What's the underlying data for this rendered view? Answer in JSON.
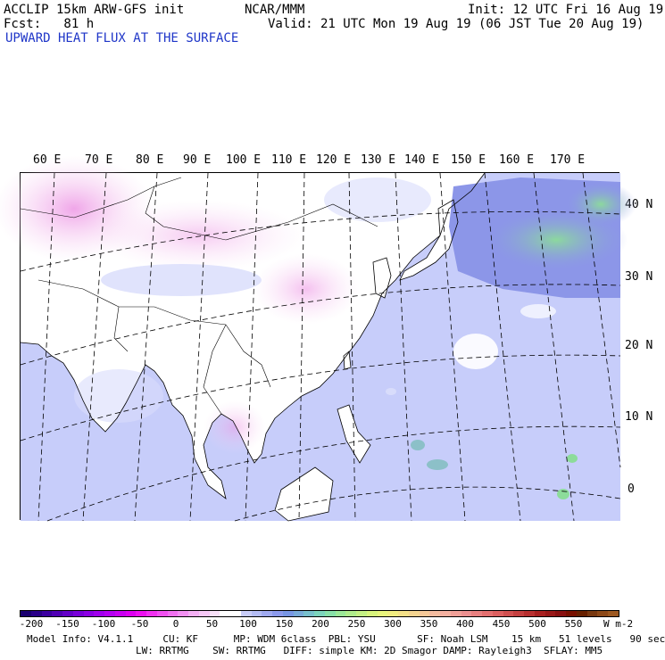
{
  "header": {
    "model": "ACCLIP 15km ARW-GFS init",
    "org": "NCAR/MMM",
    "init": "Init: 12 UTC Fri 16 Aug 19",
    "fcst": "Fcst:   81 h",
    "valid": "Valid: 21 UTC Mon 19 Aug 19 (06 JST Tue 20 Aug 19)",
    "field": "UPWARD HEAT FLUX AT THE SURFACE"
  },
  "map": {
    "lon_labels": [
      "60 E",
      "70 E",
      "80 E",
      "90 E",
      "100 E",
      "110 E",
      "120 E",
      "130 E",
      "140 E",
      "150 E",
      "160 E",
      "170 E"
    ],
    "lat_labels": [
      "40 N",
      "30 N",
      "20 N",
      "10 N",
      "0"
    ],
    "colors": {
      "ocean": "#c7cdfa",
      "ocean_deep": "#a7b0f2",
      "land": "#ffffff",
      "land_pink": "#f8d8f4",
      "land_magenta": "#ee9ce6",
      "flux_green": "#8cdc9a",
      "flux_blue": "#8c96e8"
    }
  },
  "colorbar": {
    "colors": [
      "#1a0070",
      "#2a0088",
      "#3c00a0",
      "#5000b4",
      "#6400c8",
      "#7800d8",
      "#8c00e4",
      "#a000ec",
      "#b400f0",
      "#c800f0",
      "#dc00f0",
      "#ec10f0",
      "#f030f0",
      "#f050f0",
      "#f070f0",
      "#f290f2",
      "#f4b0f4",
      "#f6c8f6",
      "#f8e0f8",
      "#ffffff",
      "#ffffff",
      "#c8ccf8",
      "#b4bcf4",
      "#a0aaf0",
      "#8c9aec",
      "#7896e4",
      "#78aad8",
      "#78c0cc",
      "#7cd4bc",
      "#88e0a8",
      "#9ce898",
      "#b0ec8c",
      "#c4f084",
      "#d8f47c",
      "#e8f47c",
      "#f0ec80",
      "#f4e088",
      "#f4d490",
      "#f4c898",
      "#f4bca0",
      "#f4b0a0",
      "#f0a098",
      "#ec9090",
      "#e88080",
      "#e47070",
      "#dc6060",
      "#d05050",
      "#c44040",
      "#b83030",
      "#a82020",
      "#981818",
      "#881010",
      "#781000",
      "#682000",
      "#783810",
      "#8c4818",
      "#9c5820"
    ],
    "ticks": [
      "-200",
      "-150",
      "-100",
      "-50",
      "0",
      "50",
      "100",
      "150",
      "200",
      "250",
      "300",
      "350",
      "400",
      "450",
      "500",
      "550"
    ],
    "unit": "W m-2"
  },
  "footer": {
    "line1": "Model Info: V4.1.1     CU: KF      MP: WDM 6class  PBL: YSU       SF: Noah LSM    15 km   51 levels   90 sec",
    "line2": "LW: RRTMG    SW: RRTMG   DIFF: simple KM: 2D Smagor DAMP: Rayleigh3  SFLAY: MM5"
  }
}
